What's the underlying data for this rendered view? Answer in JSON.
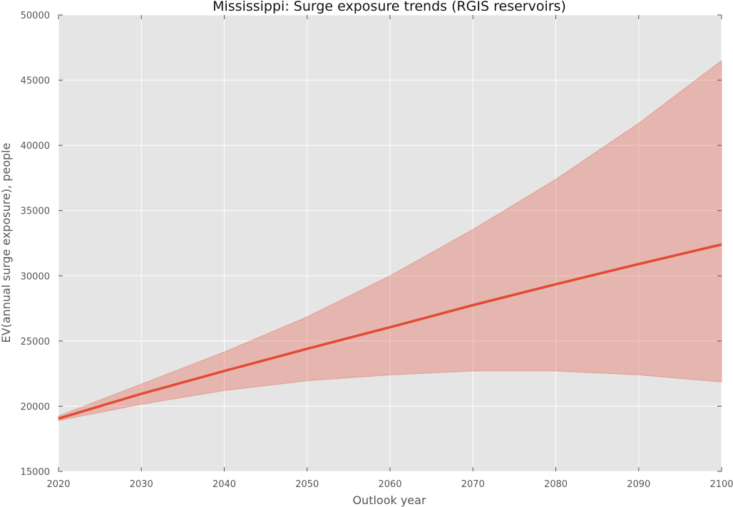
{
  "chart_data": {
    "type": "line",
    "title": "Mississippi: Surge exposure trends (RGIS reservoirs)",
    "xlabel": "Outlook year",
    "ylabel": "EV(annual surge exposure), people",
    "xlim": [
      2020,
      2100
    ],
    "ylim": [
      15000,
      50000
    ],
    "x_ticks": [
      "2020",
      "2030",
      "2040",
      "2050",
      "2060",
      "2070",
      "2080",
      "2090",
      "2100"
    ],
    "y_ticks": [
      "15000",
      "20000",
      "25000",
      "30000",
      "35000",
      "40000",
      "45000",
      "50000"
    ],
    "grid": true,
    "x": [
      2020,
      2030,
      2040,
      2050,
      2060,
      2070,
      2080,
      2090,
      2100
    ],
    "series": [
      {
        "values": [
          19050,
          20950,
          22700,
          24400,
          26050,
          27750,
          29350,
          30900,
          32400
        ],
        "color": "#e24a33"
      }
    ],
    "band": {
      "lower": [
        18900,
        20150,
        21200,
        21950,
        22400,
        22700,
        22700,
        22400,
        21850
      ],
      "upper": [
        19250,
        21700,
        24150,
        26850,
        30000,
        33550,
        37400,
        41700,
        46500
      ],
      "color": "#e24a33",
      "opacity": 0.3
    },
    "colors": {
      "plot_bg": "#e5e5e5",
      "grid": "#ffffff",
      "line": "#e24a33"
    }
  }
}
